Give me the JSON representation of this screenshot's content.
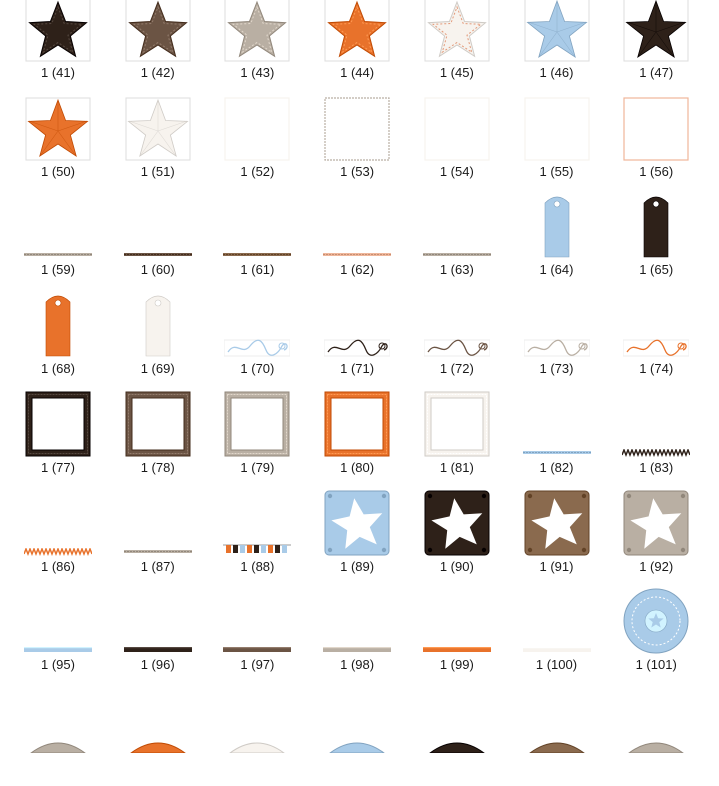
{
  "colors": {
    "darkbrown": "#2e2119",
    "brown": "#6b5444",
    "wood": "#8a6a4e",
    "grey": "#b9afa3",
    "orange": "#e8722b",
    "cream": "#f7f3ee",
    "blue": "#a9cbe8",
    "pink": "#efb69a"
  },
  "items": [
    {
      "label": "1 (41)",
      "kind": "star-stitched",
      "color": "darkbrown"
    },
    {
      "label": "1 (42)",
      "kind": "star-stitched",
      "color": "brown"
    },
    {
      "label": "1 (43)",
      "kind": "star-stitched",
      "color": "grey"
    },
    {
      "label": "1 (44)",
      "kind": "star-stitched",
      "color": "orange"
    },
    {
      "label": "1 (45)",
      "kind": "star-stitched",
      "color": "cream"
    },
    {
      "label": "1 (46)",
      "kind": "star-3d",
      "color": "blue"
    },
    {
      "label": "1 (47)",
      "kind": "star-3d",
      "color": "darkbrown"
    },
    {
      "label": "1 (50)",
      "kind": "star-3d",
      "color": "orange"
    },
    {
      "label": "1 (51)",
      "kind": "star-3d",
      "color": "cream"
    },
    {
      "label": "1 (52)",
      "kind": "paper",
      "color": "cream"
    },
    {
      "label": "1 (53)",
      "kind": "paper",
      "color": "grey"
    },
    {
      "label": "1 (54)",
      "kind": "paper",
      "color": "cream"
    },
    {
      "label": "1 (55)",
      "kind": "paper",
      "color": "cream"
    },
    {
      "label": "1 (56)",
      "kind": "paper",
      "color": "pink"
    },
    {
      "label": "1 (59)",
      "kind": "ribbon",
      "color": "grey"
    },
    {
      "label": "1 (60)",
      "kind": "ribbon",
      "color": "brown"
    },
    {
      "label": "1 (61)",
      "kind": "ribbon",
      "color": "wood"
    },
    {
      "label": "1 (62)",
      "kind": "ribbon",
      "color": "pink"
    },
    {
      "label": "1 (63)",
      "kind": "ribbon",
      "color": "grey"
    },
    {
      "label": "1 (64)",
      "kind": "tag",
      "color": "blue"
    },
    {
      "label": "1 (65)",
      "kind": "tag",
      "color": "darkbrown"
    },
    {
      "label": "1 (68)",
      "kind": "tag",
      "color": "orange"
    },
    {
      "label": "1 (69)",
      "kind": "tag",
      "color": "cream"
    },
    {
      "label": "1 (70)",
      "kind": "flourish",
      "color": "blue"
    },
    {
      "label": "1 (71)",
      "kind": "flourish",
      "color": "darkbrown"
    },
    {
      "label": "1 (72)",
      "kind": "flourish",
      "color": "brown"
    },
    {
      "label": "1 (73)",
      "kind": "flourish",
      "color": "grey"
    },
    {
      "label": "1 (74)",
      "kind": "flourish",
      "color": "orange"
    },
    {
      "label": "1 (77)",
      "kind": "frame",
      "color": "darkbrown"
    },
    {
      "label": "1 (78)",
      "kind": "frame",
      "color": "brown"
    },
    {
      "label": "1 (79)",
      "kind": "frame",
      "color": "grey"
    },
    {
      "label": "1 (80)",
      "kind": "frame",
      "color": "orange"
    },
    {
      "label": "1 (81)",
      "kind": "frame",
      "color": "cream"
    },
    {
      "label": "1 (82)",
      "kind": "ribbon",
      "color": "blue"
    },
    {
      "label": "1 (83)",
      "kind": "ribbon-zigzag",
      "color": "darkbrown"
    },
    {
      "label": "1 (86)",
      "kind": "ribbon-zigzag",
      "color": "orange"
    },
    {
      "label": "1 (87)",
      "kind": "ribbon",
      "color": "grey"
    },
    {
      "label": "1 (88)",
      "kind": "ribbon-letters",
      "color": "darkbrown"
    },
    {
      "label": "1 (89)",
      "kind": "star-plate",
      "color": "blue"
    },
    {
      "label": "1 (90)",
      "kind": "star-plate",
      "color": "darkbrown"
    },
    {
      "label": "1 (91)",
      "kind": "star-plate",
      "color": "wood"
    },
    {
      "label": "1 (92)",
      "kind": "star-plate",
      "color": "grey"
    },
    {
      "label": "1 (95)",
      "kind": "ribbon-thick",
      "color": "blue"
    },
    {
      "label": "1 (96)",
      "kind": "ribbon-thick",
      "color": "darkbrown"
    },
    {
      "label": "1 (97)",
      "kind": "ribbon-thick",
      "color": "brown"
    },
    {
      "label": "1 (98)",
      "kind": "ribbon-thick",
      "color": "grey"
    },
    {
      "label": "1 (99)",
      "kind": "ribbon-thick",
      "color": "orange"
    },
    {
      "label": "1 (100)",
      "kind": "ribbon-thick",
      "color": "cream"
    },
    {
      "label": "1 (101)",
      "kind": "button",
      "color": "blue"
    },
    {
      "label": "",
      "kind": "button-partial",
      "color": "grey"
    },
    {
      "label": "",
      "kind": "button-partial",
      "color": "orange"
    },
    {
      "label": "",
      "kind": "button-partial",
      "color": "cream"
    },
    {
      "label": "",
      "kind": "button-partial",
      "color": "blue"
    },
    {
      "label": "",
      "kind": "button-partial",
      "color": "darkbrown"
    },
    {
      "label": "",
      "kind": "button-partial",
      "color": "wood"
    },
    {
      "label": "",
      "kind": "button-partial",
      "color": "grey"
    }
  ]
}
